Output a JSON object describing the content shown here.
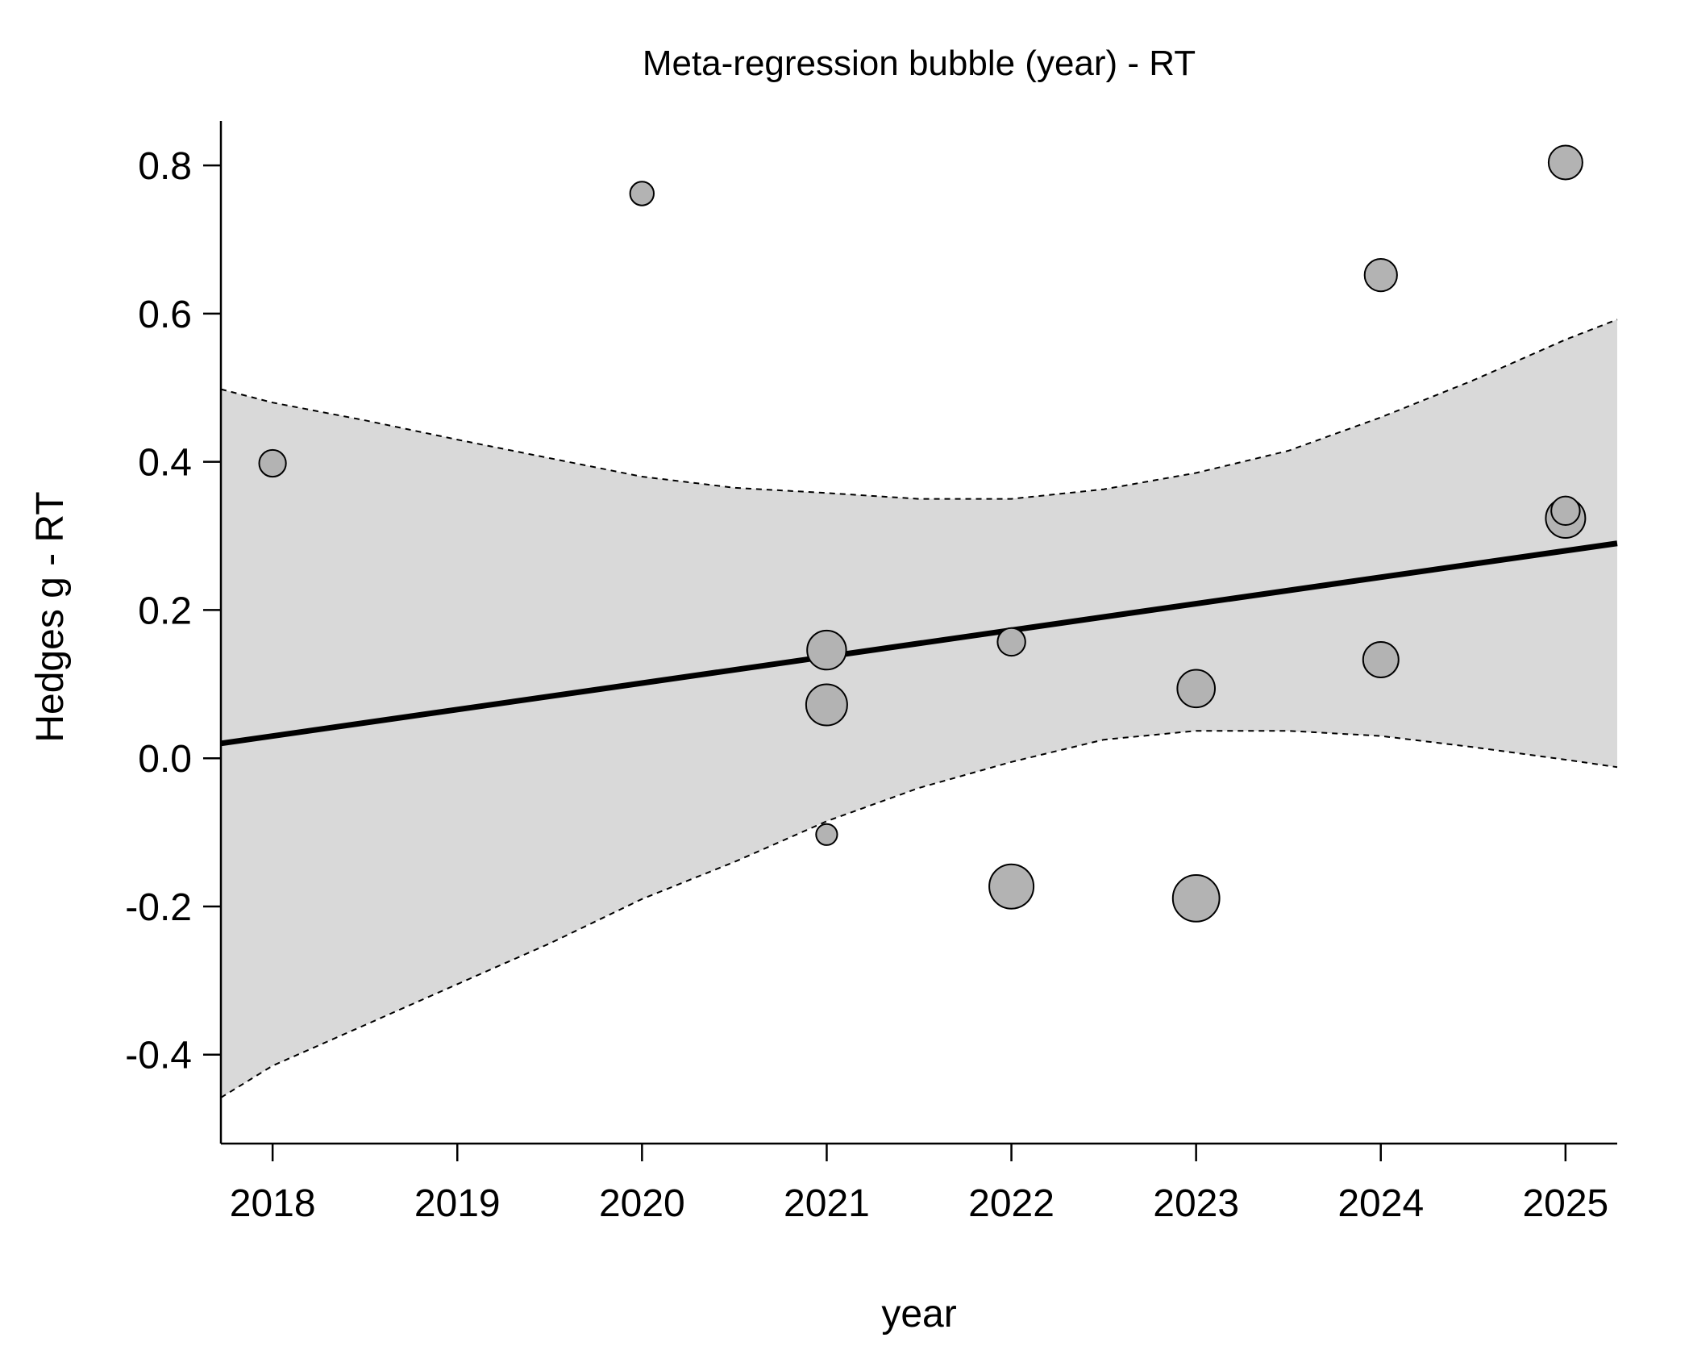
{
  "chart_data": {
    "type": "scatter",
    "title": "Meta-regression bubble (year) - RT",
    "xlabel": "year",
    "ylabel": "Hedges g - RT",
    "xlim": [
      2017.72,
      2025.28
    ],
    "ylim": [
      -0.52,
      0.86
    ],
    "x_ticks": [
      2018,
      2019,
      2020,
      2021,
      2022,
      2023,
      2024,
      2025
    ],
    "x_tick_labels": [
      "2018",
      "2019",
      "2020",
      "2021",
      "2022",
      "2023",
      "2024",
      "2025"
    ],
    "y_ticks": [
      -0.4,
      -0.2,
      0.0,
      0.2,
      0.4,
      0.6,
      0.8
    ],
    "y_tick_labels": [
      "-0.4",
      "-0.2",
      "0.0",
      "0.2",
      "0.4",
      "0.6",
      "0.8"
    ],
    "grid": false,
    "colors": {
      "point_fill": "#b3b3b3",
      "point_stroke": "#000000",
      "ci_band": "#d9d9d9",
      "line": "#000000"
    },
    "points": [
      {
        "x": 2018,
        "y": 0.398,
        "weight": 0.18
      },
      {
        "x": 2020,
        "y": 0.762,
        "weight": 0.12
      },
      {
        "x": 2021,
        "y": 0.146,
        "weight": 0.53
      },
      {
        "x": 2021,
        "y": 0.072,
        "weight": 0.61
      },
      {
        "x": 2021,
        "y": -0.103,
        "weight": 0.08
      },
      {
        "x": 2022,
        "y": 0.157,
        "weight": 0.2
      },
      {
        "x": 2022,
        "y": -0.173,
        "weight": 0.74
      },
      {
        "x": 2023,
        "y": 0.094,
        "weight": 0.48
      },
      {
        "x": 2023,
        "y": -0.189,
        "weight": 0.84
      },
      {
        "x": 2024,
        "y": 0.652,
        "weight": 0.32
      },
      {
        "x": 2024,
        "y": 0.133,
        "weight": 0.41
      },
      {
        "x": 2025,
        "y": 0.804,
        "weight": 0.36
      },
      {
        "x": 2025,
        "y": 0.324,
        "weight": 0.55
      },
      {
        "x": 2025,
        "y": 0.334,
        "weight": 0.22
      }
    ],
    "regression_line": {
      "x": [
        2017.72,
        2025.28
      ],
      "y": [
        0.02,
        0.29
      ]
    },
    "confidence_band": {
      "x": [
        2017.72,
        2018,
        2018.5,
        2019,
        2019.5,
        2020,
        2020.5,
        2021,
        2021.5,
        2022,
        2022.5,
        2023,
        2023.5,
        2024,
        2024.5,
        2025,
        2025.28
      ],
      "lower": [
        -0.458,
        -0.415,
        -0.36,
        -0.305,
        -0.25,
        -0.19,
        -0.14,
        -0.085,
        -0.04,
        -0.005,
        0.025,
        0.037,
        0.037,
        0.03,
        0.015,
        -0.002,
        -0.012
      ],
      "upper": [
        0.498,
        0.48,
        0.456,
        0.43,
        0.405,
        0.38,
        0.365,
        0.358,
        0.35,
        0.35,
        0.363,
        0.385,
        0.415,
        0.46,
        0.51,
        0.565,
        0.592
      ]
    }
  }
}
